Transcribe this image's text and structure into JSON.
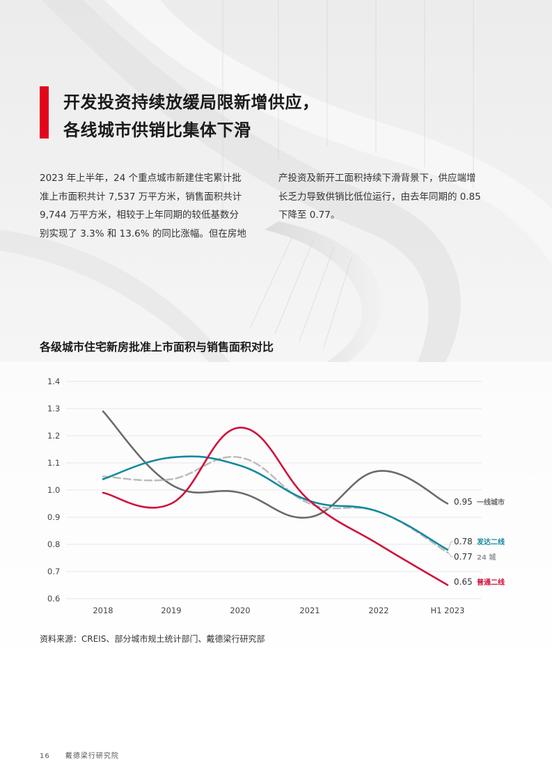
{
  "colors": {
    "accent": "#e3051b",
    "tier1": "#6b6b6b",
    "developed2": "#12899f",
    "city24": "#bdbdbd",
    "ordinary2": "#d0103a"
  },
  "heading": {
    "line1": "开发投资持续放缓局限新增供应，",
    "line2": "各线城市供销比集体下滑"
  },
  "body": {
    "left": [
      "2023 年上半年，24 个重点城市新建住宅累计批",
      "准上市面积共计 7,537 万平方米，销售面积共计",
      "9,744 万平方米，相较于上年同期的较低基数分",
      "别实现了 3.3% 和 13.6% 的同比涨幅。但在房地"
    ],
    "right": [
      "产投资及新开工面积持续下滑背景下，供应端增",
      "长乏力导致供销比低位运行，由去年同期的 0.85",
      "下降至 0.77。"
    ]
  },
  "chart_title": "各级城市住宅新房批准上市面积与销售面积对比",
  "chart_data": {
    "type": "line",
    "categories": [
      "2018",
      "2019",
      "2020",
      "2021",
      "2022",
      "H1 2023"
    ],
    "ylim": [
      0.6,
      1.4
    ],
    "yticks": [
      "1.4",
      "1.3",
      "1.2",
      "1.1",
      "1.0",
      "0.9",
      "0.8",
      "0.7",
      "0.6"
    ],
    "grid": true,
    "series": [
      {
        "name": "一线城市",
        "values": [
          1.29,
          1.02,
          0.99,
          0.9,
          1.07,
          0.95
        ],
        "end_label": "0.95",
        "color": "#6b6b6b",
        "dash": false
      },
      {
        "name": "发达二线",
        "values": [
          1.04,
          1.12,
          1.09,
          0.96,
          0.92,
          0.78
        ],
        "end_label": "0.78",
        "color": "#12899f",
        "dash": false
      },
      {
        "name": "24 城",
        "values": [
          1.05,
          1.04,
          1.12,
          0.95,
          0.92,
          0.77
        ],
        "end_label": "0.77",
        "color": "#bdbdbd",
        "dash": true
      },
      {
        "name": "普通二线",
        "values": [
          0.99,
          0.95,
          1.23,
          0.96,
          0.8,
          0.65
        ],
        "end_label": "0.65",
        "color": "#d0103a",
        "dash": false
      }
    ]
  },
  "source": "资料来源：CREIS、部分城市规土统计部门、戴德梁行研究部",
  "footer": {
    "page": "16",
    "org": "戴德梁行研究院"
  }
}
